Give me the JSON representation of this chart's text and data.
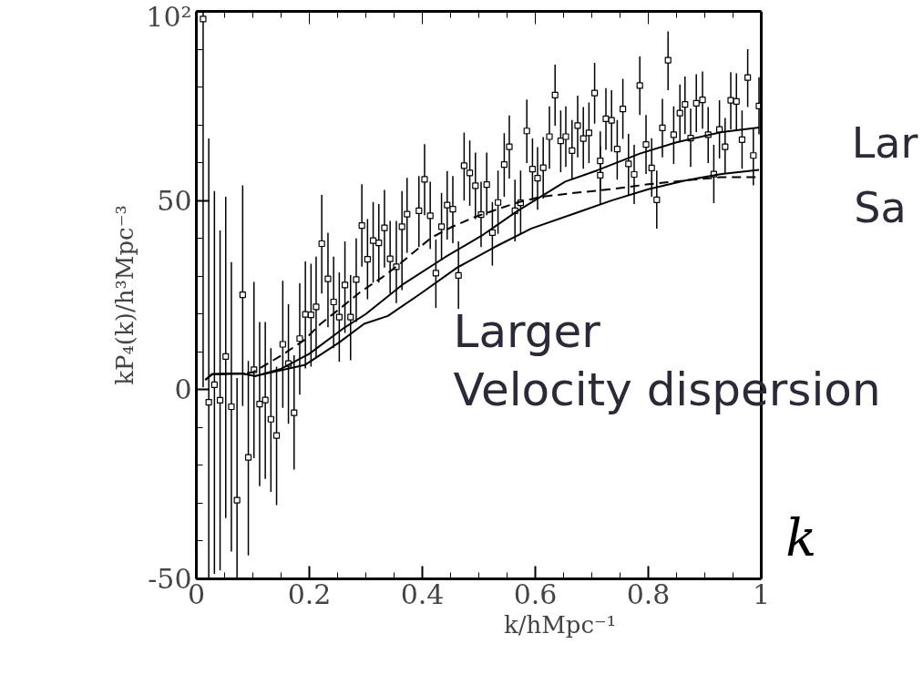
{
  "chart_data": {
    "type": "scatter",
    "xlabel": "k/hMpc⁻¹",
    "ylabel": "kP₄(k)/h³Mpc⁻³",
    "xlim": [
      0,
      1
    ],
    "ylim": [
      -50,
      100
    ],
    "xticks": [
      0,
      0.2,
      0.4,
      0.6,
      0.8,
      1
    ],
    "yticks": [
      -50,
      0,
      50,
      {
        "value": 100,
        "label": "10²"
      }
    ],
    "grid": false,
    "annotations": [
      "Larger\nVelocity dispersion",
      "k",
      "Lar",
      "Sa"
    ],
    "series": [
      {
        "marker": "square",
        "color": "#000000",
        "x": [
          0.012,
          0.022,
          0.032,
          0.042,
          0.052,
          0.062,
          0.072,
          0.082,
          0.092,
          0.102,
          0.112,
          0.122,
          0.132,
          0.142,
          0.153,
          0.163,
          0.173,
          0.183,
          0.193,
          0.203,
          0.212,
          0.222,
          0.233,
          0.243,
          0.253,
          0.263,
          0.273,
          0.283,
          0.293,
          0.303,
          0.313,
          0.323,
          0.333,
          0.343,
          0.354,
          0.364,
          0.373,
          0.394,
          0.404,
          0.414,
          0.424,
          0.434,
          0.444,
          0.454,
          0.464,
          0.474,
          0.484,
          0.494,
          0.504,
          0.514,
          0.524,
          0.534,
          0.545,
          0.554,
          0.564,
          0.574,
          0.585,
          0.595,
          0.604,
          0.614,
          0.625,
          0.635,
          0.645,
          0.654,
          0.665,
          0.675,
          0.685,
          0.695,
          0.705,
          0.715,
          0.715,
          0.725,
          0.735,
          0.745,
          0.755,
          0.765,
          0.775,
          0.785,
          0.796,
          0.806,
          0.815,
          0.825,
          0.835,
          0.845,
          0.856,
          0.865,
          0.875,
          0.885,
          0.896,
          0.906,
          0.916,
          0.926,
          0.936,
          0.946,
          0.956,
          0.966,
          0.976,
          0.986,
          0.996
        ],
        "values": [
          98.0,
          -3.3,
          1.3,
          -2.8,
          8.8,
          -4.5,
          -29.2,
          25.1,
          -17.9,
          5.3,
          -3.8,
          -2.7,
          -7.8,
          -12.1,
          12.0,
          6.9,
          -6.1,
          13.5,
          19.9,
          19.8,
          21.9,
          38.6,
          29.3,
          23.2,
          19.2,
          27.7,
          19.2,
          29.1,
          43.4,
          34.5,
          39.4,
          38.8,
          42.8,
          34.6,
          32.5,
          43.1,
          46.4,
          47.3,
          55.6,
          46.0,
          30.8,
          43.1,
          48.8,
          47.7,
          30.2,
          59.2,
          57.3,
          53.9,
          46.3,
          54.2,
          41.5,
          49.5,
          59.5,
          64.2,
          47.3,
          49.4,
          68.4,
          58.3,
          55.9,
          58.7,
          66.9,
          77.9,
          65.8,
          66.9,
          63.2,
          69.8,
          66.4,
          67.9,
          78.4,
          60.5,
          56.7,
          71.6,
          71.2,
          63.6,
          74.2,
          59.7,
          56.9,
          80.4,
          64.8,
          58.6,
          50.2,
          69.2,
          87.1,
          67.4,
          73.1,
          75.4,
          66.5,
          75.7,
          76.6,
          67.4,
          57.0,
          68.8,
          64.2,
          76.5,
          76.2,
          66.1,
          82.5,
          61.9,
          75.0
        ],
        "errors": [
          [
            0.6,
            100
          ],
          [
            -49.7,
            66.4
          ],
          [
            -48.7,
            52.5
          ],
          [
            -47.8,
            42.1
          ],
          [
            -33.9,
            51.0
          ],
          [
            -42.8,
            33.7
          ],
          [
            -49.7,
            3.1
          ],
          [
            -4.3,
            54.0
          ],
          [
            -43.8,
            7.6
          ],
          [
            -18.1,
            28.5
          ],
          [
            -25.5,
            17.9
          ],
          [
            -23.6,
            17.9
          ],
          [
            -27.0,
            11.0
          ],
          [
            -30.5,
            6.1
          ],
          [
            -4.8,
            28.8
          ],
          [
            -9.0,
            22.6
          ],
          [
            -21.1,
            9.1
          ],
          [
            -1.3,
            28.1
          ],
          [
            5.6,
            33.9
          ],
          [
            6.1,
            33.3
          ],
          [
            8.6,
            35.2
          ],
          [
            25.4,
            51.5
          ],
          [
            16.5,
            41.5
          ],
          [
            11.0,
            35.2
          ],
          [
            7.4,
            31.0
          ],
          [
            15.0,
            39.2
          ],
          [
            7.8,
            30.3
          ],
          [
            17.9,
            40.0
          ],
          [
            32.5,
            54.3
          ],
          [
            23.9,
            45.1
          ],
          [
            28.3,
            49.6
          ],
          [
            28.3,
            49.1
          ],
          [
            32.3,
            52.8
          ],
          [
            25.4,
            44.6
          ],
          [
            22.9,
            44.6
          ],
          [
            26.3,
            52.5
          ],
          [
            36.2,
            56.0
          ],
          [
            37.7,
            56.5
          ],
          [
            46.1,
            64.9
          ],
          [
            37.2,
            55.0
          ],
          [
            21.6,
            39.7
          ],
          [
            34.2,
            52.0
          ],
          [
            39.7,
            57.8
          ],
          [
            38.7,
            56.5
          ],
          [
            21.4,
            39.2
          ],
          [
            50.0,
            68.0
          ],
          [
            48.6,
            65.9
          ],
          [
            45.1,
            62.7
          ],
          [
            37.7,
            55.0
          ],
          [
            46.1,
            62.7
          ],
          [
            32.8,
            49.6
          ],
          [
            41.2,
            57.9
          ],
          [
            51.0,
            67.8
          ],
          [
            55.8,
            72.5
          ],
          [
            39.2,
            55.5
          ],
          [
            41.2,
            57.9
          ],
          [
            59.9,
            76.7
          ],
          [
            50.0,
            66.4
          ],
          [
            47.6,
            64.1
          ],
          [
            50.5,
            66.8
          ],
          [
            58.4,
            74.9
          ],
          [
            69.8,
            85.9
          ],
          [
            57.5,
            73.8
          ],
          [
            58.9,
            74.9
          ],
          [
            55.5,
            71.3
          ],
          [
            61.4,
            77.7
          ],
          [
            58.4,
            74.7
          ],
          [
            59.9,
            75.9
          ],
          [
            70.3,
            86.4
          ],
          [
            52.5,
            68.3
          ],
          [
            49.1,
            64.3
          ],
          [
            63.4,
            79.7
          ],
          [
            62.9,
            79.2
          ],
          [
            55.5,
            71.3
          ],
          [
            66.3,
            82.2
          ],
          [
            51.5,
            67.6
          ],
          [
            49.1,
            64.7
          ],
          [
            72.6,
            88.1
          ],
          [
            57.0,
            72.6
          ],
          [
            51.0,
            66.5
          ],
          [
            42.6,
            57.9
          ],
          [
            61.4,
            76.9
          ],
          [
            79.2,
            94.7
          ],
          [
            59.7,
            74.9
          ],
          [
            65.4,
            80.7
          ],
          [
            67.6,
            82.8
          ],
          [
            58.9,
            74.3
          ],
          [
            68.1,
            83.4
          ],
          [
            69.0,
            84.1
          ],
          [
            59.9,
            74.7
          ],
          [
            49.3,
            64.7
          ],
          [
            61.1,
            76.5
          ],
          [
            57.0,
            71.8
          ],
          [
            68.8,
            83.9
          ],
          [
            68.6,
            83.6
          ],
          [
            58.4,
            73.8
          ],
          [
            74.7,
            90.0
          ],
          [
            54.0,
            69.3
          ],
          [
            67.5,
            82.6
          ]
        ]
      },
      {
        "type": "line",
        "line_style": "solid",
        "color": "#000000",
        "x": [
          0.016,
          0.028,
          0.081,
          0.104,
          0.148,
          0.193,
          0.253,
          0.297,
          0.339,
          0.396,
          0.462,
          0.528,
          0.593,
          0.685,
          0.735,
          0.8,
          0.865,
          0.93,
          0.996
        ],
        "values": [
          2.6,
          4.1,
          4.3,
          3.6,
          5.1,
          6.6,
          12.5,
          17.4,
          19.5,
          25.3,
          32.3,
          37.7,
          42.6,
          47.4,
          50,
          53,
          55.3,
          57,
          58.1
        ]
      },
      {
        "type": "line",
        "line_style": "dashed",
        "color": "#000000",
        "x": [
          0.016,
          0.028,
          0.081,
          0.1,
          0.15,
          0.19,
          0.22,
          0.258,
          0.29,
          0.33,
          0.358,
          0.416,
          0.452,
          0.492,
          0.531,
          0.569,
          0.61,
          0.669,
          0.735,
          0.8,
          0.865,
          0.93,
          0.996
        ],
        "values": [
          2.6,
          4.1,
          4.3,
          4.6,
          9.0,
          13,
          17.4,
          21.9,
          25.8,
          29.8,
          33,
          40.2,
          43,
          45.6,
          47.6,
          49.5,
          51,
          52,
          53,
          54.3,
          55.3,
          56.2,
          56.2
        ]
      },
      {
        "type": "line",
        "line_style": "solid",
        "color": "#000000",
        "x": [
          0.016,
          0.028,
          0.081,
          0.104,
          0.15,
          0.2,
          0.263,
          0.3,
          0.367,
          0.44,
          0.508,
          0.566,
          0.653,
          0.71,
          0.785,
          0.85,
          0.93,
          0.996
        ],
        "values": [
          2.6,
          4.1,
          4.3,
          3.6,
          5.5,
          9.5,
          16.5,
          20,
          28,
          35,
          41,
          47,
          55,
          58,
          62.4,
          65.4,
          68.1,
          69.3
        ]
      }
    ]
  }
}
